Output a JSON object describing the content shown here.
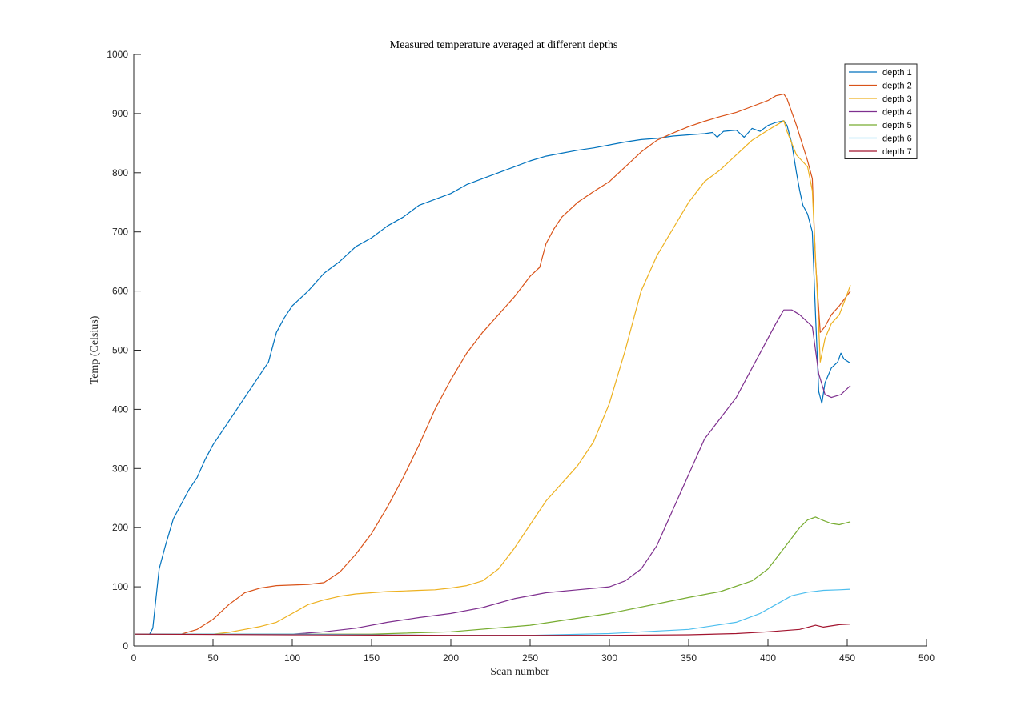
{
  "chart_data": {
    "type": "line",
    "title": "Measured temperature averaged at different depths",
    "xlabel": "Scan number",
    "ylabel": "Temp (Celsius)",
    "xlim": [
      0,
      500
    ],
    "ylim": [
      0,
      1000
    ],
    "xticks": [
      0,
      50,
      100,
      150,
      200,
      250,
      300,
      350,
      400,
      450,
      500
    ],
    "yticks": [
      0,
      100,
      200,
      300,
      400,
      500,
      600,
      700,
      800,
      900,
      1000
    ],
    "grid": false,
    "legend_position": "top-right",
    "series": [
      {
        "name": "depth 1",
        "color": "#0072BD",
        "points": [
          [
            1,
            20
          ],
          [
            10,
            20
          ],
          [
            12,
            30
          ],
          [
            14,
            80
          ],
          [
            16,
            130
          ],
          [
            20,
            170
          ],
          [
            25,
            215
          ],
          [
            30,
            240
          ],
          [
            35,
            265
          ],
          [
            40,
            285
          ],
          [
            45,
            315
          ],
          [
            50,
            340
          ],
          [
            60,
            380
          ],
          [
            70,
            420
          ],
          [
            80,
            460
          ],
          [
            85,
            480
          ],
          [
            90,
            530
          ],
          [
            95,
            555
          ],
          [
            100,
            575
          ],
          [
            110,
            600
          ],
          [
            120,
            630
          ],
          [
            130,
            650
          ],
          [
            140,
            675
          ],
          [
            150,
            690
          ],
          [
            160,
            710
          ],
          [
            170,
            725
          ],
          [
            180,
            745
          ],
          [
            190,
            755
          ],
          [
            200,
            765
          ],
          [
            210,
            780
          ],
          [
            220,
            790
          ],
          [
            230,
            800
          ],
          [
            240,
            810
          ],
          [
            250,
            820
          ],
          [
            260,
            828
          ],
          [
            270,
            833
          ],
          [
            280,
            838
          ],
          [
            290,
            842
          ],
          [
            300,
            847
          ],
          [
            310,
            852
          ],
          [
            320,
            856
          ],
          [
            330,
            858
          ],
          [
            340,
            862
          ],
          [
            350,
            864
          ],
          [
            360,
            866
          ],
          [
            365,
            868
          ],
          [
            368,
            860
          ],
          [
            372,
            870
          ],
          [
            380,
            872
          ],
          [
            385,
            860
          ],
          [
            390,
            875
          ],
          [
            395,
            870
          ],
          [
            400,
            880
          ],
          [
            405,
            885
          ],
          [
            410,
            888
          ],
          [
            412,
            880
          ],
          [
            415,
            850
          ],
          [
            418,
            800
          ],
          [
            420,
            770
          ],
          [
            422,
            745
          ],
          [
            425,
            730
          ],
          [
            428,
            700
          ],
          [
            430,
            560
          ],
          [
            432,
            430
          ],
          [
            434,
            410
          ],
          [
            436,
            445
          ],
          [
            440,
            470
          ],
          [
            444,
            480
          ],
          [
            446,
            495
          ],
          [
            448,
            485
          ],
          [
            452,
            478
          ]
        ]
      },
      {
        "name": "depth 2",
        "color": "#D95319",
        "points": [
          [
            1,
            20
          ],
          [
            30,
            20
          ],
          [
            40,
            28
          ],
          [
            50,
            45
          ],
          [
            60,
            70
          ],
          [
            70,
            90
          ],
          [
            80,
            98
          ],
          [
            90,
            102
          ],
          [
            100,
            103
          ],
          [
            110,
            104
          ],
          [
            120,
            107
          ],
          [
            130,
            125
          ],
          [
            140,
            155
          ],
          [
            150,
            190
          ],
          [
            160,
            235
          ],
          [
            170,
            285
          ],
          [
            180,
            340
          ],
          [
            190,
            400
          ],
          [
            200,
            450
          ],
          [
            210,
            495
          ],
          [
            220,
            530
          ],
          [
            230,
            560
          ],
          [
            240,
            590
          ],
          [
            250,
            625
          ],
          [
            256,
            640
          ],
          [
            260,
            680
          ],
          [
            265,
            705
          ],
          [
            270,
            725
          ],
          [
            280,
            750
          ],
          [
            290,
            768
          ],
          [
            300,
            785
          ],
          [
            310,
            810
          ],
          [
            320,
            835
          ],
          [
            330,
            855
          ],
          [
            340,
            867
          ],
          [
            350,
            878
          ],
          [
            360,
            887
          ],
          [
            370,
            895
          ],
          [
            380,
            902
          ],
          [
            390,
            912
          ],
          [
            400,
            922
          ],
          [
            405,
            930
          ],
          [
            410,
            933
          ],
          [
            412,
            925
          ],
          [
            418,
            880
          ],
          [
            425,
            820
          ],
          [
            428,
            790
          ],
          [
            430,
            650
          ],
          [
            433,
            530
          ],
          [
            436,
            540
          ],
          [
            440,
            560
          ],
          [
            445,
            575
          ],
          [
            452,
            600
          ]
        ]
      },
      {
        "name": "depth 3",
        "color": "#EDB120",
        "points": [
          [
            1,
            20
          ],
          [
            50,
            20
          ],
          [
            60,
            23
          ],
          [
            70,
            28
          ],
          [
            80,
            33
          ],
          [
            90,
            40
          ],
          [
            100,
            55
          ],
          [
            110,
            70
          ],
          [
            120,
            78
          ],
          [
            130,
            84
          ],
          [
            140,
            88
          ],
          [
            150,
            90
          ],
          [
            160,
            92
          ],
          [
            170,
            93
          ],
          [
            180,
            94
          ],
          [
            190,
            95
          ],
          [
            200,
            98
          ],
          [
            210,
            102
          ],
          [
            220,
            110
          ],
          [
            230,
            130
          ],
          [
            240,
            165
          ],
          [
            250,
            205
          ],
          [
            260,
            245
          ],
          [
            270,
            275
          ],
          [
            280,
            305
          ],
          [
            290,
            345
          ],
          [
            300,
            410
          ],
          [
            310,
            500
          ],
          [
            315,
            550
          ],
          [
            320,
            600
          ],
          [
            330,
            660
          ],
          [
            340,
            705
          ],
          [
            350,
            750
          ],
          [
            360,
            785
          ],
          [
            370,
            805
          ],
          [
            380,
            830
          ],
          [
            390,
            855
          ],
          [
            400,
            872
          ],
          [
            405,
            880
          ],
          [
            410,
            888
          ],
          [
            412,
            870
          ],
          [
            418,
            830
          ],
          [
            425,
            810
          ],
          [
            428,
            770
          ],
          [
            431,
            600
          ],
          [
            433,
            480
          ],
          [
            436,
            520
          ],
          [
            440,
            545
          ],
          [
            445,
            560
          ],
          [
            450,
            595
          ],
          [
            452,
            610
          ]
        ]
      },
      {
        "name": "depth 4",
        "color": "#7E2F8E",
        "points": [
          [
            1,
            20
          ],
          [
            100,
            20
          ],
          [
            120,
            24
          ],
          [
            140,
            30
          ],
          [
            160,
            40
          ],
          [
            180,
            48
          ],
          [
            200,
            55
          ],
          [
            220,
            65
          ],
          [
            240,
            80
          ],
          [
            260,
            90
          ],
          [
            280,
            95
          ],
          [
            300,
            100
          ],
          [
            310,
            110
          ],
          [
            320,
            130
          ],
          [
            330,
            170
          ],
          [
            340,
            230
          ],
          [
            350,
            290
          ],
          [
            360,
            350
          ],
          [
            370,
            385
          ],
          [
            380,
            420
          ],
          [
            390,
            470
          ],
          [
            400,
            520
          ],
          [
            405,
            545
          ],
          [
            410,
            568
          ],
          [
            415,
            568
          ],
          [
            420,
            560
          ],
          [
            428,
            540
          ],
          [
            432,
            460
          ],
          [
            436,
            425
          ],
          [
            440,
            420
          ],
          [
            446,
            425
          ],
          [
            452,
            440
          ]
        ]
      },
      {
        "name": "depth 5",
        "color": "#77AC30",
        "points": [
          [
            1,
            20
          ],
          [
            150,
            20
          ],
          [
            200,
            24
          ],
          [
            250,
            35
          ],
          [
            300,
            55
          ],
          [
            350,
            82
          ],
          [
            370,
            92
          ],
          [
            390,
            110
          ],
          [
            400,
            130
          ],
          [
            410,
            165
          ],
          [
            420,
            200
          ],
          [
            425,
            213
          ],
          [
            430,
            218
          ],
          [
            435,
            212
          ],
          [
            440,
            207
          ],
          [
            445,
            205
          ],
          [
            452,
            210
          ]
        ]
      },
      {
        "name": "depth 6",
        "color": "#4DBEEE",
        "points": [
          [
            1,
            20
          ],
          [
            100,
            20
          ],
          [
            150,
            19
          ],
          [
            200,
            18
          ],
          [
            250,
            18
          ],
          [
            300,
            21
          ],
          [
            350,
            28
          ],
          [
            380,
            40
          ],
          [
            395,
            55
          ],
          [
            405,
            70
          ],
          [
            415,
            85
          ],
          [
            425,
            91
          ],
          [
            435,
            94
          ],
          [
            445,
            95
          ],
          [
            452,
            96
          ]
        ]
      },
      {
        "name": "depth 7",
        "color": "#A2142F",
        "points": [
          [
            1,
            20
          ],
          [
            100,
            19
          ],
          [
            200,
            18
          ],
          [
            250,
            18
          ],
          [
            300,
            18
          ],
          [
            350,
            19
          ],
          [
            380,
            21
          ],
          [
            400,
            24
          ],
          [
            410,
            26
          ],
          [
            420,
            28
          ],
          [
            430,
            35
          ],
          [
            435,
            32
          ],
          [
            440,
            34
          ],
          [
            445,
            36
          ],
          [
            452,
            37
          ]
        ]
      }
    ]
  }
}
